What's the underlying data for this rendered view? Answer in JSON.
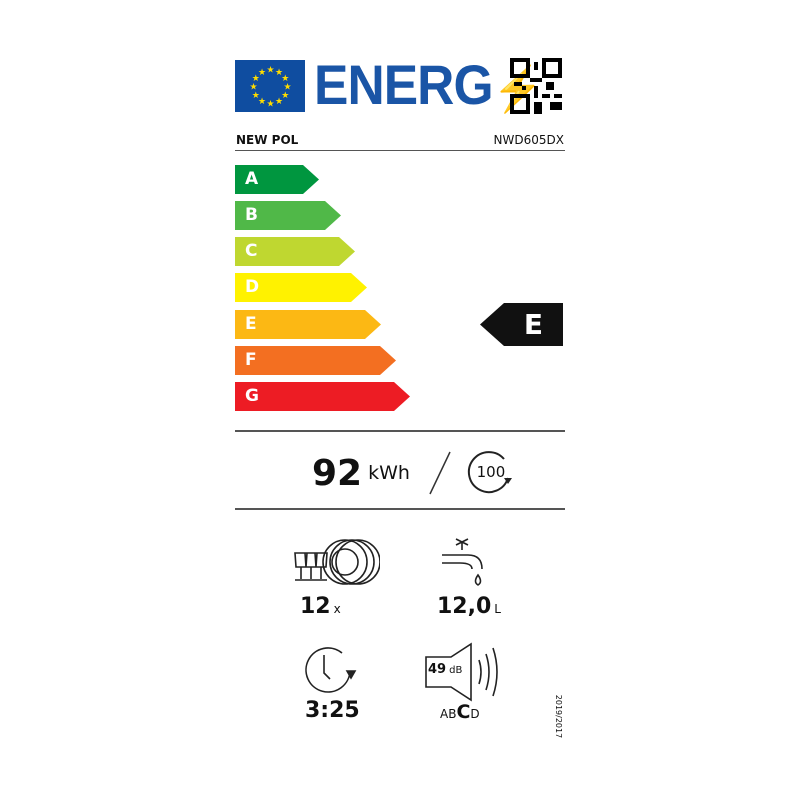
{
  "header": {
    "logo_text": "ENERG",
    "brand": "NEW POL",
    "model": "NWD605DX"
  },
  "scale": [
    {
      "letter": "A",
      "color": "#00963f"
    },
    {
      "letter": "B",
      "color": "#50b848"
    },
    {
      "letter": "C",
      "color": "#bfd730"
    },
    {
      "letter": "D",
      "color": "#fff200"
    },
    {
      "letter": "E",
      "color": "#fcb814"
    },
    {
      "letter": "F",
      "color": "#f36f21"
    },
    {
      "letter": "G",
      "color": "#ed1c24"
    }
  ],
  "rating": {
    "class": "E"
  },
  "energy": {
    "value": "92",
    "unit": "kWh",
    "cycles": "100"
  },
  "specs": {
    "place_settings": "12",
    "place_settings_unit": "x",
    "water": "12,0",
    "water_unit": "L",
    "duration": "3:25",
    "noise": "49",
    "noise_unit": "dB",
    "noise_classes": [
      "A",
      "B",
      "C",
      "D"
    ],
    "noise_class": "C"
  },
  "regulation": "2019/2017"
}
